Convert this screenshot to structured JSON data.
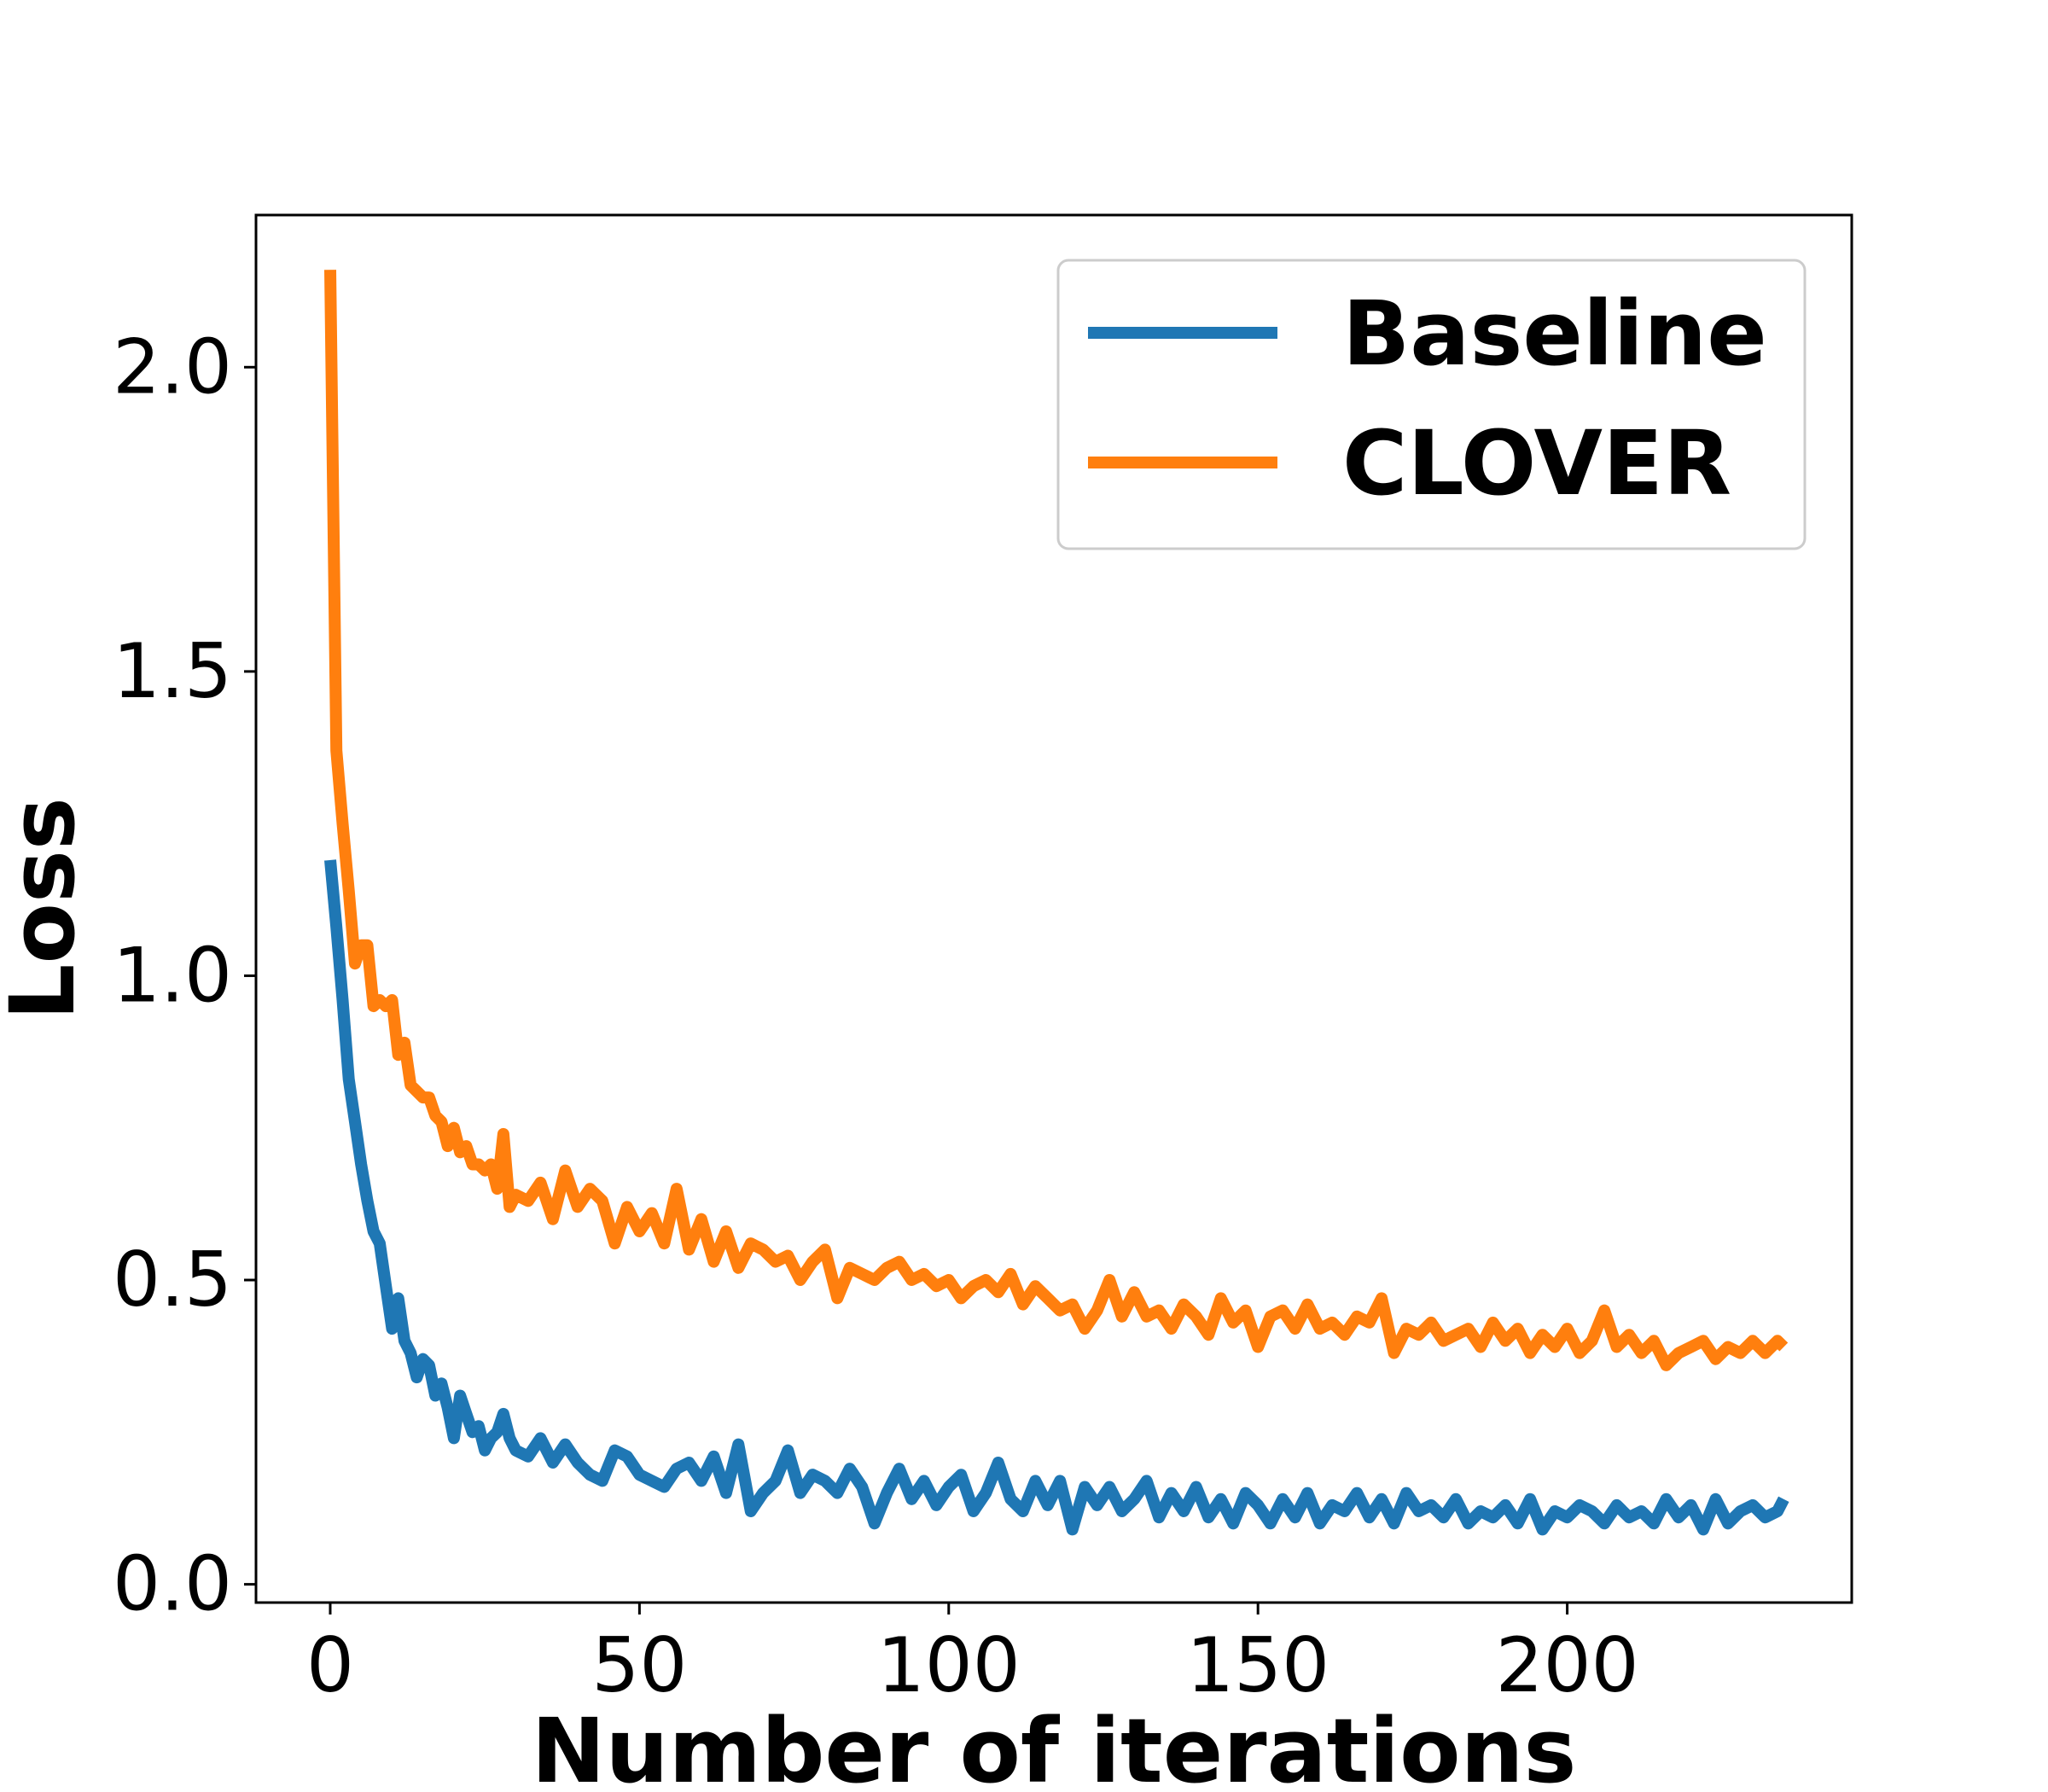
{
  "chart_data": {
    "type": "line",
    "title": "",
    "xlabel": "Number of iterations",
    "ylabel": "Loss",
    "xlim": [
      -12,
      246
    ],
    "ylim": [
      -0.03,
      2.25
    ],
    "xticks": [
      0,
      50,
      100,
      150,
      200
    ],
    "xtick_labels": [
      "0",
      "50",
      "100",
      "150",
      "200"
    ],
    "yticks": [
      0.0,
      0.5,
      1.0,
      1.5,
      2.0
    ],
    "ytick_labels": [
      "0.0",
      "0.5",
      "1.0",
      "1.5",
      "2.0"
    ],
    "grid": false,
    "legend": {
      "position": "upper right"
    },
    "series": [
      {
        "name": "Baseline",
        "color": "#1f77b4",
        "x": [
          0,
          1,
          2,
          3,
          4,
          5,
          6,
          7,
          8,
          9,
          10,
          11,
          12,
          13,
          14,
          15,
          16,
          17,
          18,
          19,
          20,
          21,
          22,
          23,
          24,
          25,
          26,
          27,
          28,
          29,
          30,
          32,
          34,
          36,
          38,
          40,
          42,
          44,
          46,
          48,
          50,
          52,
          54,
          56,
          58,
          60,
          62,
          64,
          66,
          68,
          70,
          72,
          74,
          76,
          78,
          80,
          82,
          84,
          86,
          88,
          90,
          92,
          94,
          96,
          98,
          100,
          102,
          104,
          106,
          108,
          110,
          112,
          114,
          116,
          118,
          120,
          122,
          124,
          126,
          128,
          130,
          132,
          134,
          136,
          138,
          140,
          142,
          144,
          146,
          148,
          150,
          152,
          154,
          156,
          158,
          160,
          162,
          164,
          166,
          168,
          170,
          172,
          174,
          176,
          178,
          180,
          182,
          184,
          186,
          188,
          190,
          192,
          194,
          196,
          198,
          200,
          202,
          204,
          206,
          208,
          210,
          212,
          214,
          216,
          218,
          220,
          222,
          224,
          226,
          228,
          230,
          232,
          234,
          235
        ],
        "y": [
          1.19,
          1.08,
          0.96,
          0.83,
          0.76,
          0.69,
          0.63,
          0.58,
          0.56,
          0.49,
          0.42,
          0.47,
          0.4,
          0.38,
          0.34,
          0.37,
          0.36,
          0.31,
          0.33,
          0.29,
          0.24,
          0.31,
          0.28,
          0.25,
          0.26,
          0.22,
          0.24,
          0.25,
          0.28,
          0.24,
          0.22,
          0.21,
          0.24,
          0.2,
          0.23,
          0.2,
          0.18,
          0.17,
          0.22,
          0.21,
          0.18,
          0.17,
          0.16,
          0.19,
          0.2,
          0.17,
          0.21,
          0.15,
          0.23,
          0.12,
          0.15,
          0.17,
          0.22,
          0.15,
          0.18,
          0.17,
          0.15,
          0.19,
          0.16,
          0.1,
          0.15,
          0.19,
          0.14,
          0.17,
          0.13,
          0.16,
          0.18,
          0.12,
          0.15,
          0.2,
          0.14,
          0.12,
          0.17,
          0.13,
          0.17,
          0.09,
          0.16,
          0.13,
          0.16,
          0.12,
          0.14,
          0.17,
          0.11,
          0.15,
          0.12,
          0.16,
          0.11,
          0.14,
          0.1,
          0.15,
          0.13,
          0.1,
          0.14,
          0.11,
          0.15,
          0.1,
          0.13,
          0.12,
          0.15,
          0.11,
          0.14,
          0.1,
          0.15,
          0.12,
          0.13,
          0.11,
          0.14,
          0.1,
          0.12,
          0.11,
          0.13,
          0.1,
          0.14,
          0.09,
          0.12,
          0.11,
          0.13,
          0.12,
          0.1,
          0.13,
          0.11,
          0.12,
          0.1,
          0.14,
          0.11,
          0.13,
          0.09,
          0.14,
          0.1,
          0.12,
          0.13,
          0.11,
          0.12,
          0.14
        ]
      },
      {
        "name": "CLOVER",
        "color": "#ff7f0e",
        "x": [
          0,
          1,
          2,
          3,
          4,
          5,
          6,
          7,
          8,
          9,
          10,
          11,
          12,
          13,
          14,
          15,
          16,
          17,
          18,
          19,
          20,
          21,
          22,
          23,
          24,
          25,
          26,
          27,
          28,
          29,
          30,
          32,
          34,
          36,
          38,
          40,
          42,
          44,
          46,
          48,
          50,
          52,
          54,
          56,
          58,
          60,
          62,
          64,
          66,
          68,
          70,
          72,
          74,
          76,
          78,
          80,
          82,
          84,
          86,
          88,
          90,
          92,
          94,
          96,
          98,
          100,
          102,
          104,
          106,
          108,
          110,
          112,
          114,
          116,
          118,
          120,
          122,
          124,
          126,
          128,
          130,
          132,
          134,
          136,
          138,
          140,
          142,
          144,
          146,
          148,
          150,
          152,
          154,
          156,
          158,
          160,
          162,
          164,
          166,
          168,
          170,
          172,
          174,
          176,
          178,
          180,
          182,
          184,
          186,
          188,
          190,
          192,
          194,
          196,
          198,
          200,
          202,
          204,
          206,
          208,
          210,
          212,
          214,
          216,
          218,
          220,
          222,
          224,
          226,
          228,
          230,
          232,
          234,
          235
        ],
        "y": [
          2.16,
          1.37,
          1.25,
          1.14,
          1.02,
          1.05,
          1.05,
          0.95,
          0.96,
          0.95,
          0.96,
          0.87,
          0.89,
          0.82,
          0.81,
          0.8,
          0.8,
          0.77,
          0.76,
          0.72,
          0.75,
          0.71,
          0.72,
          0.69,
          0.69,
          0.68,
          0.69,
          0.65,
          0.74,
          0.62,
          0.64,
          0.63,
          0.66,
          0.6,
          0.68,
          0.62,
          0.65,
          0.63,
          0.56,
          0.62,
          0.58,
          0.61,
          0.56,
          0.65,
          0.55,
          0.6,
          0.53,
          0.58,
          0.52,
          0.56,
          0.55,
          0.53,
          0.54,
          0.5,
          0.53,
          0.55,
          0.47,
          0.52,
          0.51,
          0.5,
          0.52,
          0.53,
          0.5,
          0.51,
          0.49,
          0.5,
          0.47,
          0.49,
          0.5,
          0.48,
          0.51,
          0.46,
          0.49,
          0.47,
          0.45,
          0.46,
          0.42,
          0.45,
          0.5,
          0.44,
          0.48,
          0.44,
          0.45,
          0.42,
          0.46,
          0.44,
          0.41,
          0.47,
          0.43,
          0.45,
          0.39,
          0.44,
          0.45,
          0.42,
          0.46,
          0.42,
          0.43,
          0.41,
          0.44,
          0.43,
          0.47,
          0.38,
          0.42,
          0.41,
          0.43,
          0.4,
          0.41,
          0.42,
          0.39,
          0.43,
          0.4,
          0.42,
          0.38,
          0.41,
          0.39,
          0.42,
          0.38,
          0.4,
          0.45,
          0.39,
          0.41,
          0.38,
          0.4,
          0.36,
          0.38,
          0.39,
          0.4,
          0.37,
          0.39,
          0.38,
          0.4,
          0.38,
          0.4,
          0.39
        ]
      }
    ]
  }
}
